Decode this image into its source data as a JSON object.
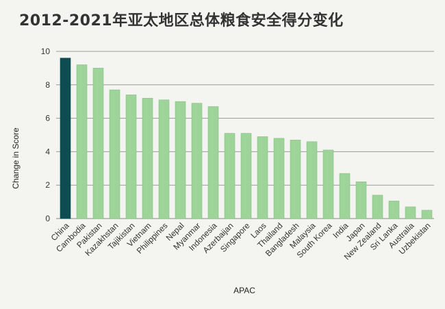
{
  "chart_data": {
    "type": "bar",
    "title": "2012-2021年亚太地区总体粮食安全得分变化",
    "xlabel": "APAC",
    "ylabel": "Change in Score",
    "ylim": [
      0,
      10
    ],
    "yticks": [
      "0",
      "2",
      "4",
      "6",
      "8",
      "10"
    ],
    "grid": true,
    "categories": [
      "China",
      "Cambodia",
      "Pakistan",
      "Kazakhstan",
      "Tajikistan",
      "Vietnam",
      "Philippines",
      "Nepal",
      "Myanmar",
      "Indonesia",
      "Azerbaijan",
      "Singapore",
      "Laos",
      "Thailand",
      "Bangladesh",
      "Malaysia",
      "South Korea",
      "India",
      "Japan",
      "New Zealand",
      "Sri Lanka",
      "Australia",
      "Uzbekistan"
    ],
    "values": [
      9.6,
      9.2,
      9.0,
      7.7,
      7.4,
      7.2,
      7.1,
      7.0,
      6.9,
      6.7,
      5.1,
      5.1,
      4.9,
      4.8,
      4.7,
      4.6,
      4.1,
      2.7,
      2.2,
      1.4,
      1.05,
      0.7,
      0.5
    ],
    "colors": {
      "highlight": "#0d4d52",
      "bar": "#9ed49a",
      "bar_edge": "#86c282",
      "grid": "#9a9a9a"
    },
    "highlight_index": 0
  }
}
